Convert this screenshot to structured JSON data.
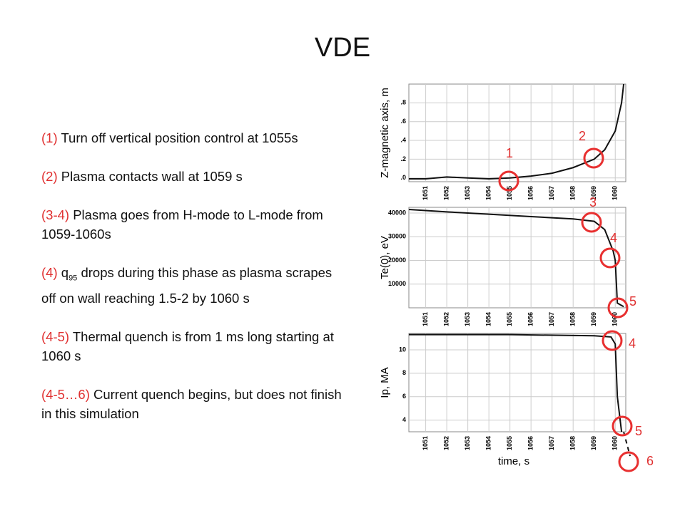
{
  "title": "VDE",
  "items": [
    {
      "tag": "(1)",
      "text": "Turn off vertical position control at 1055s"
    },
    {
      "tag": "(2)",
      "text": "Plasma contacts wall at 1059 s"
    },
    {
      "tag": "(3-4)",
      "text": "Plasma goes from H-mode to L-mode from 1059-1060s"
    },
    {
      "tag": "(4)",
      "text": "q",
      "sub": "95",
      "rest": " drops during this phase as plasma scrapes off on wall reaching 1.5-2 by 1060 s"
    },
    {
      "tag": "(4-5)",
      "text": "Thermal quench is from 1 ms long starting at 1060 s"
    },
    {
      "tag": "(4-5…6)",
      "text": "Current quench begins, but does not finish in this simulation"
    }
  ],
  "markers": [
    "1",
    "2",
    "3",
    "4",
    "5",
    "4",
    "5",
    "6"
  ],
  "chart_data": [
    {
      "type": "line",
      "ylabel": "Z-magnetic axis, m",
      "color": "#111111",
      "grid": true,
      "x": [
        1050.2,
        1051,
        1052,
        1053,
        1054,
        1055,
        1056,
        1057,
        1058,
        1059,
        1059.5,
        1060,
        1060.3,
        1060.4
      ],
      "values": [
        -0.01,
        -0.01,
        0.01,
        0.0,
        -0.01,
        0.0,
        0.02,
        0.05,
        0.11,
        0.2,
        0.3,
        0.5,
        0.8,
        1.0
      ],
      "xlim": [
        1050.2,
        1060.5
      ],
      "xticks": [
        1051,
        1052,
        1053,
        1054,
        1055,
        1056,
        1057,
        1058,
        1059,
        1060
      ],
      "ylim": [
        -0.04,
        1.0
      ],
      "yticks": [
        {
          "value": 0,
          "label": ".0"
        },
        {
          "value": 0.2,
          "label": ".2"
        },
        {
          "value": 0.4,
          "label": ".4"
        },
        {
          "value": 0.6,
          "label": ".6"
        },
        {
          "value": 0.8,
          "label": ".8"
        }
      ]
    },
    {
      "type": "line",
      "ylabel": "Te(0), eV",
      "color": "#111111",
      "grid": true,
      "x": [
        1050.2,
        1052,
        1054,
        1056,
        1058,
        1059,
        1059.5,
        1059.9,
        1060.0,
        1060.1,
        1060.4
      ],
      "values": [
        41500,
        40500,
        39500,
        38500,
        37500,
        36500,
        33000,
        24000,
        20000,
        2000,
        500
      ],
      "xlim": [
        1050.2,
        1060.5
      ],
      "xticks": [
        1051,
        1052,
        1053,
        1054,
        1055,
        1056,
        1057,
        1058,
        1059,
        1060
      ],
      "ylim": [
        0,
        42400
      ],
      "yticks": [
        10000,
        20000,
        30000,
        40000
      ]
    },
    {
      "type": "line",
      "ylabel": "Ip, MA",
      "xlabel": "time, s",
      "color": "#111111",
      "grid": true,
      "x": [
        1050.2,
        1055,
        1059,
        1059.8,
        1060.0,
        1060.1,
        1060.3
      ],
      "values": [
        11.3,
        11.3,
        11.2,
        11.1,
        10.5,
        6,
        3.0
      ],
      "xlim": [
        1050.2,
        1060.5
      ],
      "xticks": [
        1051,
        1052,
        1053,
        1054,
        1055,
        1056,
        1057,
        1058,
        1059,
        1060
      ],
      "ylim": [
        3,
        11.4
      ],
      "yticks": [
        4,
        6,
        8,
        10
      ]
    }
  ]
}
